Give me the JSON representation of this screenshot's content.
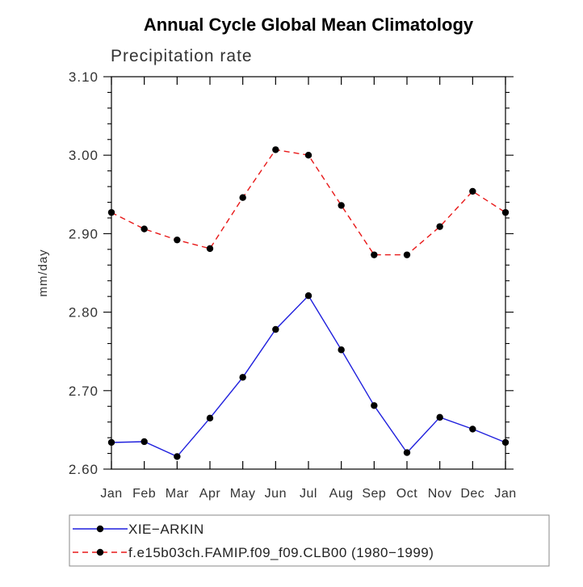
{
  "chart_data": {
    "type": "line",
    "title": "Annual Cycle Global Mean Climatology",
    "subtitle": "Precipitation rate",
    "xlabel": "",
    "ylabel": "mm/day",
    "categories": [
      "Jan",
      "Feb",
      "Mar",
      "Apr",
      "May",
      "Jun",
      "Jul",
      "Aug",
      "Sep",
      "Oct",
      "Nov",
      "Dec",
      "Jan"
    ],
    "ylim": [
      2.6,
      3.1
    ],
    "yticks": [
      2.6,
      2.7,
      2.8,
      2.9,
      3.0,
      3.1
    ],
    "ytick_labels": [
      "2.60",
      "2.70",
      "2.80",
      "2.90",
      "3.00",
      "3.10"
    ],
    "grid": false,
    "legend_position": "bottom",
    "series": [
      {
        "name": "XIE−ARKIN",
        "color": "#1f1fdd",
        "style": "solid",
        "marker": "filled-circle",
        "values": [
          2.634,
          2.635,
          2.616,
          2.665,
          2.717,
          2.778,
          2.821,
          2.752,
          2.681,
          2.621,
          2.666,
          2.651,
          2.634
        ]
      },
      {
        "name": "f.e15b03ch.FAMIP.f09_f09.CLB00 (1980−1999)",
        "color": "#e81818",
        "style": "dashed",
        "marker": "filled-circle",
        "values": [
          2.927,
          2.906,
          2.892,
          2.881,
          2.946,
          3.007,
          3.0,
          2.936,
          2.873,
          2.873,
          2.909,
          2.954,
          2.927
        ]
      }
    ]
  }
}
